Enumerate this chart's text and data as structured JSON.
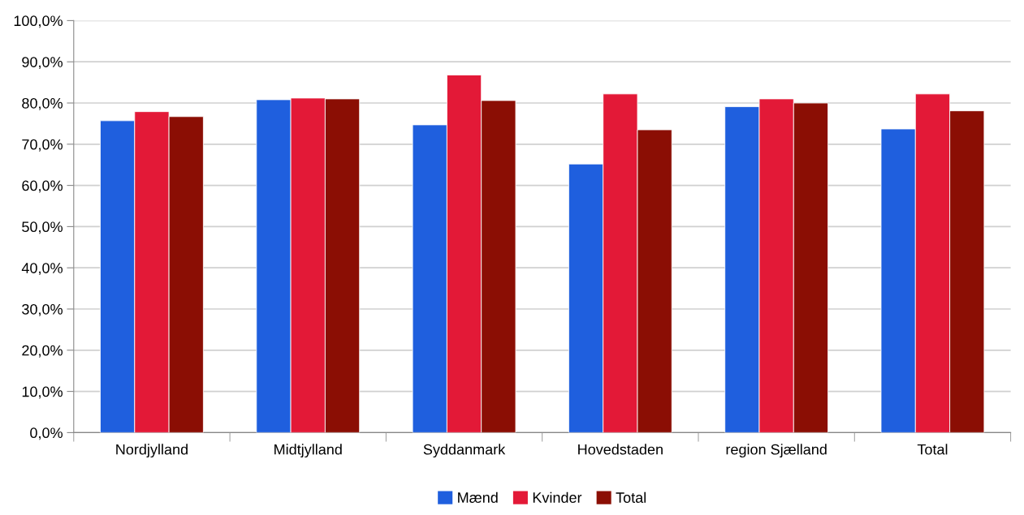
{
  "chart_data": {
    "type": "bar",
    "categories": [
      "Nordjylland",
      "Midtjylland",
      "Syddanmark",
      "Hovedstaden",
      "region Sjælland",
      "Total"
    ],
    "series": [
      {
        "name": "Mænd",
        "color": "#1f5fde",
        "values": [
          75.7,
          80.8,
          74.7,
          65.2,
          79.1,
          73.7
        ]
      },
      {
        "name": "Kvinder",
        "color": "#e31937",
        "values": [
          77.9,
          81.2,
          86.8,
          82.2,
          81.0,
          82.2
        ]
      },
      {
        "name": "Total",
        "color": "#8b0e04",
        "values": [
          76.7,
          81.0,
          80.6,
          73.5,
          80.0,
          78.1
        ]
      }
    ],
    "ylim": [
      0,
      100
    ],
    "yticks": [
      {
        "value": 0,
        "label": "0,0%"
      },
      {
        "value": 10,
        "label": "10,0%"
      },
      {
        "value": 20,
        "label": "20,0%"
      },
      {
        "value": 30,
        "label": "30,0%"
      },
      {
        "value": 40,
        "label": "40,0%"
      },
      {
        "value": 50,
        "label": "50,0%"
      },
      {
        "value": 60,
        "label": "60,0%"
      },
      {
        "value": 70,
        "label": "70,0%"
      },
      {
        "value": 80,
        "label": "80,0%"
      },
      {
        "value": 90,
        "label": "90,0%"
      },
      {
        "value": 100,
        "label": "100,0%"
      }
    ],
    "grid": "y",
    "legend": "bottom"
  }
}
